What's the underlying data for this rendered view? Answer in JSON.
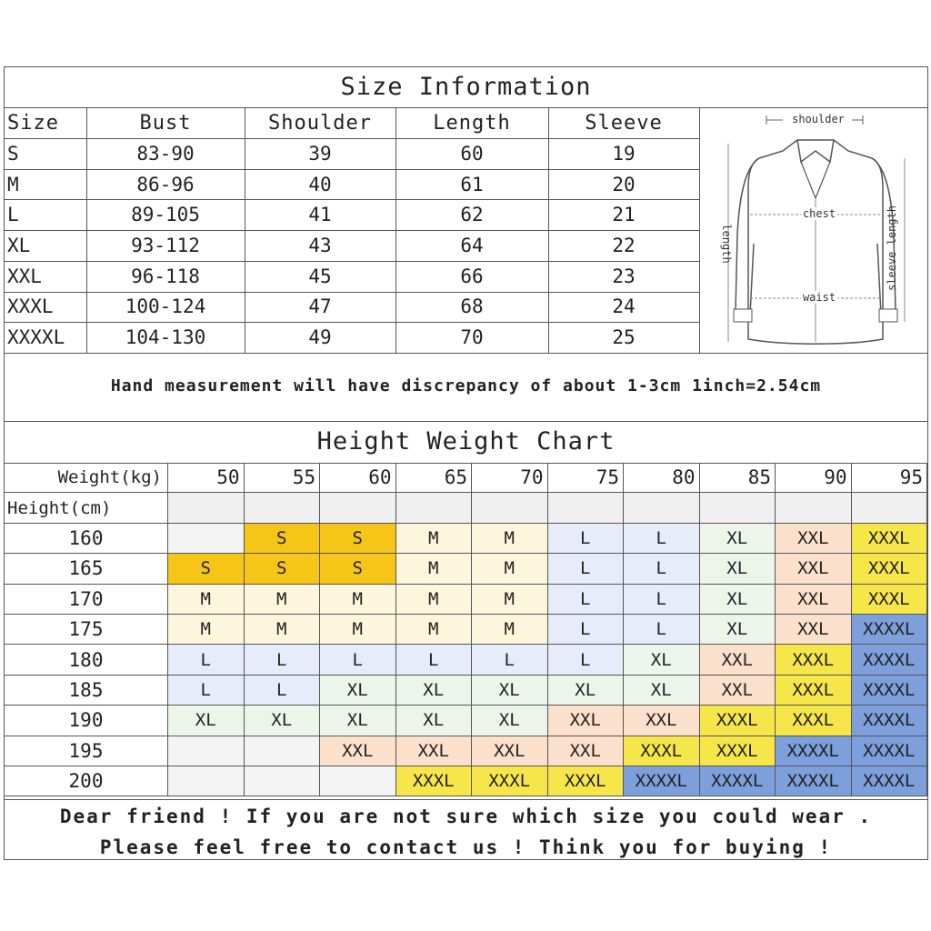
{
  "size_info": {
    "title": "Size Information",
    "headers": [
      "Size",
      "Bust",
      "Shoulder",
      "Length",
      "Sleeve"
    ],
    "rows": [
      [
        "S",
        "83-90",
        "39",
        "60",
        "19"
      ],
      [
        "M",
        "86-96",
        "40",
        "61",
        "20"
      ],
      [
        "L",
        "89-105",
        "41",
        "62",
        "21"
      ],
      [
        "XL",
        "93-112",
        "43",
        "64",
        "22"
      ],
      [
        "XXL",
        "96-118",
        "45",
        "66",
        "23"
      ],
      [
        "XXXL",
        "100-124",
        "47",
        "68",
        "24"
      ],
      [
        "XXXXL",
        "104-130",
        "49",
        "70",
        "25"
      ]
    ],
    "diagram": {
      "shoulder": "shoulder",
      "chest": "chest",
      "waist": "waist",
      "length": "length",
      "sleeve_length": "sleeve length"
    }
  },
  "note": "Hand measurement will have discrepancy of about 1-3cm  1inch=2.54cm",
  "height_weight": {
    "title": "Height Weight Chart",
    "weight_label": "Weight(kg)",
    "height_label": "Height(cm)",
    "weights": [
      "50",
      "55",
      "60",
      "65",
      "70",
      "75",
      "80",
      "85",
      "90",
      "95"
    ],
    "heights": [
      "160",
      "165",
      "170",
      "175",
      "180",
      "185",
      "190",
      "195",
      "200"
    ],
    "grid": [
      [
        "",
        "S",
        "S",
        "M",
        "M",
        "L",
        "L",
        "XL",
        "XXL",
        "XXXL"
      ],
      [
        "S",
        "S",
        "S",
        "M",
        "M",
        "L",
        "L",
        "XL",
        "XXL",
        "XXXL"
      ],
      [
        "M",
        "M",
        "M",
        "M",
        "M",
        "L",
        "L",
        "XL",
        "XXL",
        "XXXL"
      ],
      [
        "M",
        "M",
        "M",
        "M",
        "M",
        "L",
        "L",
        "XL",
        "XXL",
        "XXXXL"
      ],
      [
        "L",
        "L",
        "L",
        "L",
        "L",
        "L",
        "XL",
        "XXL",
        "XXXL",
        "XXXXL"
      ],
      [
        "L",
        "L",
        "XL",
        "XL",
        "XL",
        "XL",
        "XL",
        "XXL",
        "XXXL",
        "XXXXL"
      ],
      [
        "XL",
        "XL",
        "XL",
        "XL",
        "XL",
        "XXL",
        "XXL",
        "XXXL",
        "XXXL",
        "XXXXL"
      ],
      [
        "",
        "",
        "XXL",
        "XXL",
        "XXL",
        "XXL",
        "XXXL",
        "XXXL",
        "XXXXL",
        "XXXXL"
      ],
      [
        "",
        "",
        "",
        "XXXL",
        "XXXL",
        "XXXL",
        "XXXXL",
        "XXXXL",
        "XXXXL",
        "XXXXL"
      ]
    ],
    "size_colors": {
      "S": "#f5c518",
      "M": "#fdf6dc",
      "L": "#e6ecfa",
      "XL": "#edf5ea",
      "XXL": "#fbe0cc",
      "XXXL": "#f7e64a",
      "XXXXL": "#7d9fdc"
    }
  },
  "footer": {
    "line1": "Dear friend ! If you are not sure which size you could wear .",
    "line2": "Please feel free to contact us ! Think you for buying !"
  }
}
